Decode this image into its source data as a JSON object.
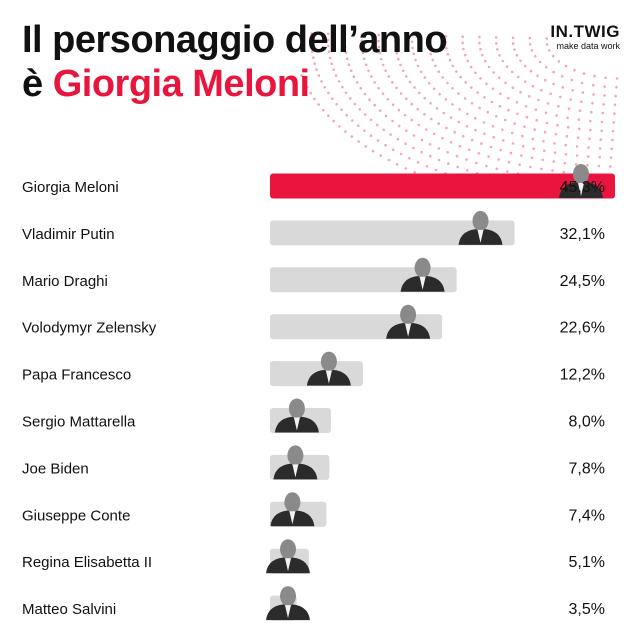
{
  "header": {
    "title_line1": "Il personaggio dell’anno",
    "title_line2_prefix": "è ",
    "title_line2_highlight": "Giorgia Meloni"
  },
  "brand": {
    "logo": "IN.TWIG",
    "tagline": "make data work"
  },
  "colors": {
    "highlight": "#e8163f",
    "bar": "#d9d9d9",
    "text": "#111111",
    "dots": "#f2a7b8"
  },
  "chart_data": {
    "type": "bar",
    "orientation": "horizontal",
    "highlight_index": 0,
    "categories": [
      "Giorgia Meloni",
      "Vladimir Putin",
      "Mario Draghi",
      "Volodymyr Zelensky",
      "Papa Francesco",
      "Sergio Mattarella",
      "Joe Biden",
      "Giuseppe Conte",
      "Regina Elisabetta II",
      "Matteo Salvini"
    ],
    "values": [
      45.3,
      32.1,
      24.5,
      22.6,
      12.2,
      8.0,
      7.8,
      7.4,
      5.1,
      3.5
    ],
    "value_labels": [
      "45,3%",
      "32,1%",
      "24,5%",
      "22,6%",
      "12,2%",
      "8,0%",
      "7,8%",
      "7,4%",
      "5,1%",
      "3,5%"
    ],
    "xlim": [
      0,
      45.3
    ],
    "grid": false,
    "legend": "none"
  }
}
